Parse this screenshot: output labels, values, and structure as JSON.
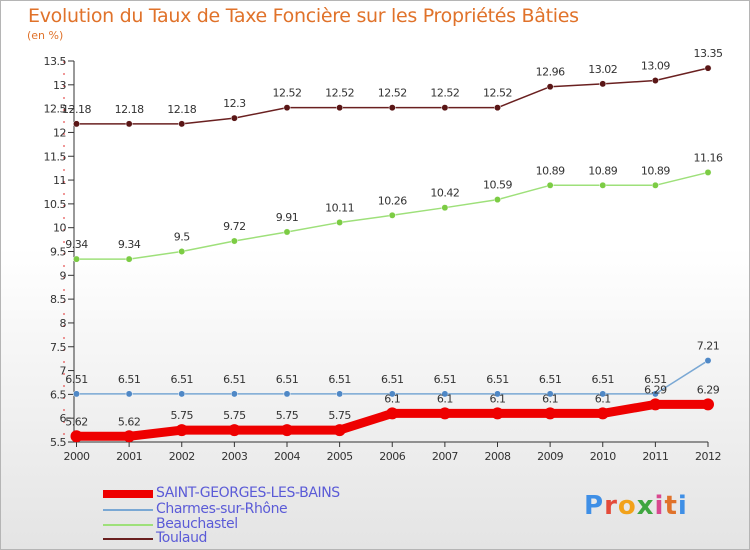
{
  "chart_data": {
    "type": "line",
    "title": "Evolution du Taux de Taxe Foncière sur les Propriétés Bâties",
    "unit": "(en %)",
    "xlabel": "",
    "ylabel": "",
    "ylim": [
      5.5,
      13.5
    ],
    "yticks": [
      "5.5",
      "6",
      "6.5",
      "7",
      "7.5",
      "8",
      "8.5",
      "9",
      "9.5",
      "10",
      "10.5",
      "11",
      "11.5",
      "12",
      "12.5",
      "13",
      "13.5"
    ],
    "categories": [
      "2000",
      "2001",
      "2002",
      "2003",
      "2004",
      "2005",
      "2006",
      "2007",
      "2008",
      "2009",
      "2010",
      "2011",
      "2012"
    ],
    "series": [
      {
        "name": "Toulaud",
        "color": "#6a2020",
        "dot": "#5a1616",
        "values": [
          12.18,
          12.18,
          12.18,
          12.3,
          12.52,
          12.52,
          12.52,
          12.52,
          12.52,
          12.96,
          13.02,
          13.09,
          13.35
        ],
        "labels": [
          "12.18",
          "12.18",
          "12.18",
          "12.3",
          "12.52",
          "12.52",
          "12.52",
          "12.52",
          "12.52",
          "12.96",
          "13.02",
          "13.09",
          "13.35"
        ]
      },
      {
        "name": "Beauchastel",
        "color": "#9ee07a",
        "dot": "#7ccc44",
        "values": [
          9.34,
          9.34,
          9.5,
          9.72,
          9.91,
          10.11,
          10.26,
          10.42,
          10.59,
          10.89,
          10.89,
          10.89,
          11.16
        ],
        "labels": [
          "9.34",
          "9.34",
          "9.5",
          "9.72",
          "9.91",
          "10.11",
          "10.26",
          "10.42",
          "10.59",
          "10.89",
          "10.89",
          "10.89",
          "11.16"
        ]
      },
      {
        "name": "Charmes-sur-Rhône",
        "color": "#7aa8d4",
        "dot": "#4f88c6",
        "values": [
          6.51,
          6.51,
          6.51,
          6.51,
          6.51,
          6.51,
          6.51,
          6.51,
          6.51,
          6.51,
          6.51,
          6.51,
          7.21
        ],
        "labels": [
          "6.51",
          "6.51",
          "6.51",
          "6.51",
          "6.51",
          "6.51",
          "6.51",
          "6.51",
          "6.51",
          "6.51",
          "6.51",
          "6.51",
          "7.21"
        ]
      },
      {
        "name": "SAINT-GEORGES-LES-BAINS",
        "color": "#ee0000",
        "dot": "#ee0000",
        "values": [
          5.62,
          5.62,
          5.75,
          5.75,
          5.75,
          5.75,
          6.1,
          6.1,
          6.1,
          6.1,
          6.1,
          6.29,
          6.29
        ],
        "labels": [
          "5.62",
          "5.62",
          "5.75",
          "5.75",
          "5.75",
          "5.75",
          "6.1",
          "6.1",
          "6.1",
          "6.1",
          "6.1",
          "6.29",
          "6.29"
        ]
      }
    ]
  },
  "legend": [
    "SAINT-GEORGES-LES-BAINS",
    "Charmes-sur-Rhône",
    "Beauchastel",
    "Toulaud"
  ],
  "logo": {
    "letters": [
      "P",
      "r",
      "o",
      "x",
      "i",
      "t",
      "i"
    ],
    "colors": [
      "#3f8fe6",
      "#e44b3a",
      "#f2a21a",
      "#3fa640",
      "#d9488f",
      "#e0722a",
      "#3f8fe6"
    ]
  }
}
